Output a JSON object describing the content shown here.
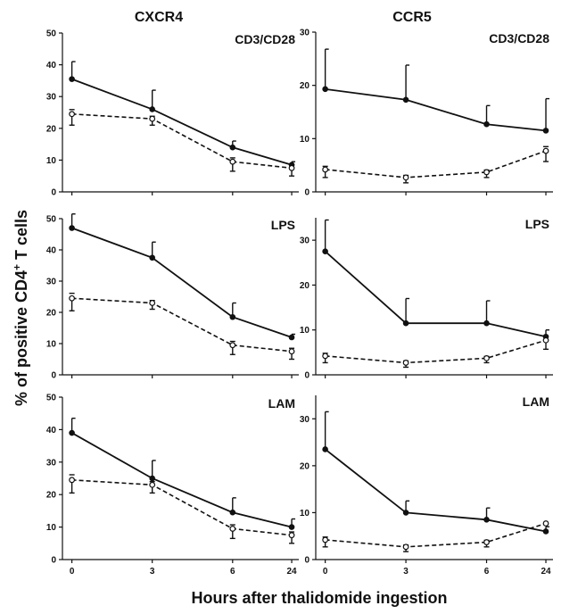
{
  "figure": {
    "column_titles": [
      "CXCR4",
      "CCR5"
    ],
    "ylabel_prefix": "% of positive CD4",
    "ylabel_sup": "+",
    "ylabel_suffix": " T cells",
    "xlabel": "Hours after thalidomide ingestion"
  },
  "chart_data": [
    {
      "type": "line",
      "label": "CD3/CD28",
      "column": "CXCR4",
      "categories": [
        "0",
        "3",
        "6",
        "24"
      ],
      "ylim": [
        0,
        50
      ],
      "yticks": [
        0,
        10,
        20,
        30,
        40,
        50
      ],
      "series": [
        {
          "style": "solid-filled",
          "values": [
            35.5,
            26,
            14,
            8.5
          ],
          "err_up": [
            5.5,
            6,
            2,
            1
          ],
          "err_down": [
            0,
            0,
            0,
            0
          ]
        },
        {
          "style": "dashed-open",
          "values": [
            24.5,
            23,
            9.5,
            7.5
          ],
          "err_up": [
            0,
            0,
            0,
            0
          ],
          "err_down": [
            3.5,
            2,
            3,
            2.5
          ]
        }
      ]
    },
    {
      "type": "line",
      "label": "CD3/CD28",
      "column": "CCR5",
      "categories": [
        "0",
        "3",
        "6",
        "24"
      ],
      "ylim": [
        0,
        30
      ],
      "yticks": [
        0,
        10,
        20,
        30
      ],
      "series": [
        {
          "style": "solid-filled",
          "values": [
            19.3,
            17.3,
            12.7,
            11.5
          ],
          "err_up": [
            7.5,
            6.5,
            3.5,
            6
          ],
          "err_down": [
            0,
            0,
            0,
            0
          ]
        },
        {
          "style": "dashed-open",
          "values": [
            4.2,
            2.7,
            3.7,
            7.7
          ],
          "err_up": [
            0,
            0,
            0,
            0
          ],
          "err_down": [
            1.5,
            1,
            1,
            2
          ]
        }
      ]
    },
    {
      "type": "line",
      "label": "LPS",
      "column": "CXCR4",
      "categories": [
        "0",
        "3",
        "6",
        "24"
      ],
      "ylim": [
        0,
        50
      ],
      "yticks": [
        0,
        10,
        20,
        30,
        40,
        50
      ],
      "series": [
        {
          "style": "solid-filled",
          "values": [
            47,
            37.5,
            18.5,
            12
          ],
          "err_up": [
            4.5,
            5,
            4.5,
            1
          ],
          "err_down": [
            0,
            0,
            0,
            0
          ]
        },
        {
          "style": "dashed-open",
          "values": [
            24.5,
            23,
            9.5,
            7.5
          ],
          "err_up": [
            0,
            0,
            0,
            0
          ],
          "err_down": [
            4,
            2,
            3,
            2.5
          ]
        }
      ]
    },
    {
      "type": "line",
      "label": "LPS",
      "column": "CCR5",
      "categories": [
        "0",
        "3",
        "6",
        "24"
      ],
      "ylim": [
        0,
        35
      ],
      "yticks": [
        0,
        10,
        20,
        30
      ],
      "series": [
        {
          "style": "solid-filled",
          "values": [
            27.5,
            11.5,
            11.5,
            8.5
          ],
          "err_up": [
            7,
            5.5,
            5,
            1.5
          ],
          "err_down": [
            0,
            0,
            0,
            0
          ]
        },
        {
          "style": "dashed-open",
          "values": [
            4.2,
            2.7,
            3.7,
            7.7
          ],
          "err_up": [
            0,
            0,
            0,
            0
          ],
          "err_down": [
            1.5,
            1,
            1,
            2
          ]
        }
      ]
    },
    {
      "type": "line",
      "label": "LAM",
      "column": "CXCR4",
      "categories": [
        "0",
        "3",
        "6",
        "24"
      ],
      "ylim": [
        0,
        50
      ],
      "yticks": [
        0,
        10,
        20,
        30,
        40,
        50
      ],
      "series": [
        {
          "style": "solid-filled",
          "values": [
            39,
            25,
            14.5,
            10
          ],
          "err_up": [
            4.5,
            5.5,
            4.5,
            2.5
          ],
          "err_down": [
            0,
            0,
            0,
            0
          ]
        },
        {
          "style": "dashed-open",
          "values": [
            24.5,
            23,
            9.5,
            7.5
          ],
          "err_up": [
            0,
            0,
            0,
            0
          ],
          "err_down": [
            4,
            2.5,
            3,
            2.5
          ]
        }
      ]
    },
    {
      "type": "line",
      "label": "LAM",
      "column": "CCR5",
      "categories": [
        "0",
        "3",
        "6",
        "24"
      ],
      "ylim": [
        0,
        35
      ],
      "yticks": [
        0,
        10,
        20,
        30
      ],
      "series": [
        {
          "style": "solid-filled",
          "values": [
            23.5,
            10,
            8.5,
            6
          ],
          "err_up": [
            8,
            2.5,
            2.5,
            1
          ],
          "err_down": [
            0,
            0,
            0,
            0
          ]
        },
        {
          "style": "dashed-open",
          "values": [
            4.2,
            2.7,
            3.7,
            7.7
          ],
          "err_up": [
            0,
            0,
            0,
            0
          ],
          "err_down": [
            1.5,
            1,
            1,
            0
          ]
        }
      ]
    }
  ]
}
